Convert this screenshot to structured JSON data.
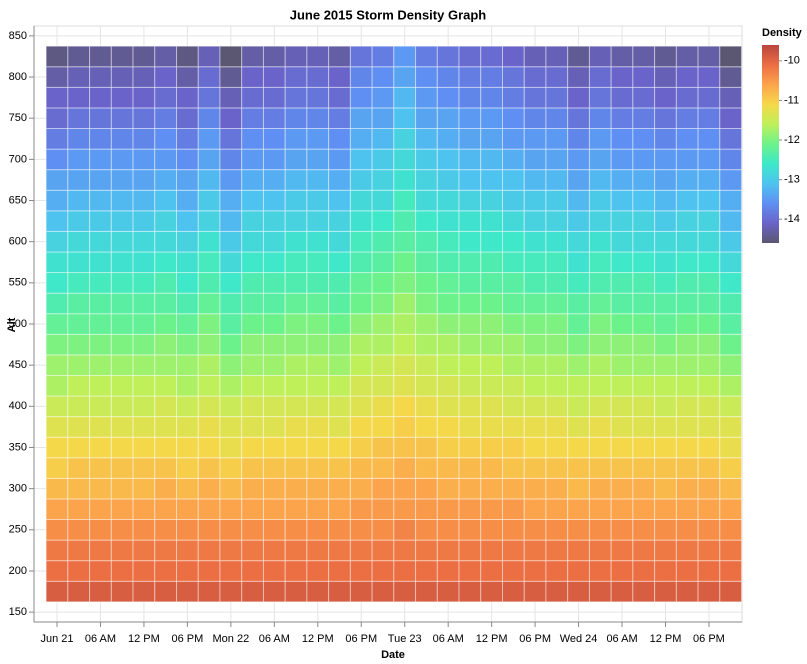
{
  "chart_data": {
    "type": "heatmap",
    "title": "June 2015 Storm Density Graph",
    "x_label": "Date",
    "y_label": "Alt",
    "color_title": "Density",
    "x": [
      "Jun 21 00:00",
      "Jun 21 03:00",
      "Jun 21 06:00",
      "Jun 21 09:00",
      "Jun 21 12:00",
      "Jun 21 15:00",
      "Jun 21 18:00",
      "Jun 21 21:00",
      "Jun 22 00:00",
      "Jun 22 03:00",
      "Jun 22 06:00",
      "Jun 22 09:00",
      "Jun 22 12:00",
      "Jun 22 15:00",
      "Jun 22 18:00",
      "Jun 22 21:00",
      "Jun 23 00:00",
      "Jun 23 03:00",
      "Jun 23 06:00",
      "Jun 23 09:00",
      "Jun 23 12:00",
      "Jun 23 15:00",
      "Jun 23 18:00",
      "Jun 23 21:00",
      "Jun 24 00:00",
      "Jun 24 03:00",
      "Jun 24 06:00",
      "Jun 24 09:00",
      "Jun 24 12:00",
      "Jun 24 15:00",
      "Jun 24 18:00",
      "Jun 24 21:00"
    ],
    "y": [
      175,
      200,
      225,
      250,
      275,
      300,
      325,
      350,
      375,
      400,
      425,
      450,
      475,
      500,
      525,
      550,
      575,
      600,
      625,
      650,
      675,
      700,
      725,
      750,
      775,
      800,
      825
    ],
    "z": [
      [
        -9.9,
        -9.9,
        -9.9,
        -9.9,
        -9.9,
        -9.9,
        -9.9,
        -9.9,
        -9.9,
        -9.9,
        -9.9,
        -9.9,
        -9.9,
        -9.9,
        -9.9,
        -9.9,
        -9.9,
        -9.9,
        -9.9,
        -9.9,
        -9.9,
        -9.9,
        -9.9,
        -9.9,
        -9.9,
        -9.9,
        -9.9,
        -9.9,
        -9.9,
        -9.9,
        -9.9,
        -9.9
      ],
      [
        -10.1,
        -10.1,
        -10.1,
        -10.1,
        -10.1,
        -10.1,
        -10.1,
        -10.1,
        -10.1,
        -10.1,
        -10.1,
        -10.1,
        -10.1,
        -10.1,
        -10.1,
        -10.1,
        -10.1,
        -10.1,
        -10.1,
        -10.1,
        -10.1,
        -10.1,
        -10.1,
        -10.1,
        -10.1,
        -10.1,
        -10.1,
        -10.1,
        -10.1,
        -10.1,
        -10.1,
        -10.1
      ],
      [
        -10.2,
        -10.2,
        -10.2,
        -10.2,
        -10.2,
        -10.2,
        -10.2,
        -10.2,
        -10.2,
        -10.2,
        -10.2,
        -10.2,
        -10.2,
        -10.2,
        -10.2,
        -10.2,
        -10.2,
        -10.2,
        -10.2,
        -10.2,
        -10.2,
        -10.2,
        -10.2,
        -10.2,
        -10.2,
        -10.2,
        -10.2,
        -10.2,
        -10.2,
        -10.2,
        -10.2,
        -10.2
      ],
      [
        -10.4,
        -10.4,
        -10.4,
        -10.4,
        -10.4,
        -10.4,
        -10.4,
        -10.4,
        -10.4,
        -10.4,
        -10.4,
        -10.4,
        -10.4,
        -10.4,
        -10.4,
        -10.4,
        -10.3,
        -10.4,
        -10.4,
        -10.4,
        -10.4,
        -10.4,
        -10.4,
        -10.4,
        -10.4,
        -10.4,
        -10.4,
        -10.4,
        -10.4,
        -10.4,
        -10.4,
        -10.4
      ],
      [
        -10.6,
        -10.6,
        -10.6,
        -10.6,
        -10.6,
        -10.6,
        -10.6,
        -10.6,
        -10.6,
        -10.6,
        -10.6,
        -10.6,
        -10.6,
        -10.6,
        -10.5,
        -10.5,
        -10.5,
        -10.5,
        -10.5,
        -10.5,
        -10.5,
        -10.5,
        -10.6,
        -10.6,
        -10.6,
        -10.6,
        -10.6,
        -10.6,
        -10.6,
        -10.6,
        -10.6,
        -10.6
      ],
      [
        -10.8,
        -10.8,
        -10.8,
        -10.8,
        -10.8,
        -10.7,
        -10.8,
        -10.7,
        -10.8,
        -10.7,
        -10.7,
        -10.7,
        -10.7,
        -10.7,
        -10.7,
        -10.6,
        -10.6,
        -10.6,
        -10.7,
        -10.7,
        -10.7,
        -10.7,
        -10.7,
        -10.7,
        -10.8,
        -10.7,
        -10.7,
        -10.7,
        -10.8,
        -10.7,
        -10.7,
        -10.8
      ],
      [
        -11.0,
        -10.9,
        -10.9,
        -10.9,
        -10.9,
        -10.9,
        -11.0,
        -10.9,
        -11.0,
        -10.9,
        -10.9,
        -10.9,
        -10.9,
        -10.9,
        -10.8,
        -10.8,
        -10.7,
        -10.8,
        -10.8,
        -10.8,
        -10.8,
        -10.9,
        -10.9,
        -10.9,
        -10.9,
        -10.9,
        -10.9,
        -10.9,
        -10.9,
        -10.9,
        -10.9,
        -11.0
      ],
      [
        -11.1,
        -11.1,
        -11.1,
        -11.1,
        -11.1,
        -11.1,
        -11.1,
        -11.1,
        -11.2,
        -11.1,
        -11.1,
        -11.1,
        -11.1,
        -11.1,
        -11.0,
        -10.9,
        -10.9,
        -10.9,
        -11.0,
        -11.0,
        -11.0,
        -11.0,
        -11.1,
        -11.1,
        -11.1,
        -11.1,
        -11.1,
        -11.1,
        -11.1,
        -11.1,
        -11.1,
        -11.2
      ],
      [
        -11.3,
        -11.3,
        -11.3,
        -11.3,
        -11.3,
        -11.3,
        -11.3,
        -11.2,
        -11.3,
        -11.3,
        -11.3,
        -11.2,
        -11.2,
        -11.3,
        -11.1,
        -11.1,
        -11.0,
        -11.1,
        -11.1,
        -11.2,
        -11.2,
        -11.2,
        -11.2,
        -11.2,
        -11.3,
        -11.2,
        -11.3,
        -11.3,
        -11.3,
        -11.3,
        -11.3,
        -11.3
      ],
      [
        -11.5,
        -11.5,
        -11.5,
        -11.5,
        -11.5,
        -11.4,
        -11.5,
        -11.4,
        -11.5,
        -11.4,
        -11.4,
        -11.4,
        -11.4,
        -11.4,
        -11.3,
        -11.2,
        -11.1,
        -11.2,
        -11.3,
        -11.3,
        -11.3,
        -11.4,
        -11.4,
        -11.4,
        -11.5,
        -11.4,
        -11.4,
        -11.4,
        -11.5,
        -11.4,
        -11.4,
        -11.5
      ],
      [
        -11.7,
        -11.6,
        -11.6,
        -11.6,
        -11.6,
        -11.6,
        -11.7,
        -11.6,
        -11.7,
        -11.6,
        -11.6,
        -11.6,
        -11.6,
        -11.6,
        -11.4,
        -11.4,
        -11.3,
        -11.4,
        -11.4,
        -11.5,
        -11.5,
        -11.5,
        -11.6,
        -11.6,
        -11.6,
        -11.6,
        -11.6,
        -11.6,
        -11.6,
        -11.6,
        -11.6,
        -11.7
      ],
      [
        -11.8,
        -11.8,
        -11.8,
        -11.8,
        -11.8,
        -11.8,
        -11.8,
        -11.7,
        -11.9,
        -11.8,
        -11.8,
        -11.7,
        -11.7,
        -11.8,
        -11.6,
        -11.5,
        -11.4,
        -11.5,
        -11.6,
        -11.6,
        -11.6,
        -11.7,
        -11.7,
        -11.7,
        -11.8,
        -11.7,
        -11.8,
        -11.8,
        -11.8,
        -11.8,
        -11.8,
        -11.9
      ],
      [
        -12.0,
        -12.0,
        -12.0,
        -12.0,
        -12.0,
        -11.9,
        -12.0,
        -11.9,
        -12.1,
        -11.9,
        -11.9,
        -11.9,
        -11.9,
        -11.9,
        -11.7,
        -11.7,
        -11.6,
        -11.7,
        -11.7,
        -11.8,
        -11.8,
        -11.8,
        -11.9,
        -11.9,
        -12.0,
        -11.9,
        -11.9,
        -11.9,
        -12.0,
        -11.9,
        -11.9,
        -12.1
      ],
      [
        -12.2,
        -12.2,
        -12.2,
        -12.2,
        -12.2,
        -12.1,
        -12.2,
        -12.0,
        -12.3,
        -12.1,
        -12.1,
        -12.0,
        -12.0,
        -12.1,
        -11.9,
        -11.8,
        -11.7,
        -11.8,
        -11.9,
        -11.9,
        -11.9,
        -12.0,
        -12.0,
        -12.0,
        -12.2,
        -12.0,
        -12.1,
        -12.1,
        -12.2,
        -12.1,
        -12.1,
        -12.3
      ],
      [
        -12.4,
        -12.3,
        -12.3,
        -12.3,
        -12.3,
        -12.3,
        -12.4,
        -12.2,
        -12.4,
        -12.3,
        -12.3,
        -12.2,
        -12.2,
        -12.3,
        -12.1,
        -12.0,
        -11.8,
        -12.0,
        -12.1,
        -12.1,
        -12.1,
        -12.2,
        -12.2,
        -12.2,
        -12.3,
        -12.2,
        -12.3,
        -12.3,
        -12.3,
        -12.3,
        -12.3,
        -12.4
      ],
      [
        -12.6,
        -12.5,
        -12.5,
        -12.5,
        -12.5,
        -12.4,
        -12.6,
        -12.4,
        -12.6,
        -12.4,
        -12.4,
        -12.4,
        -12.4,
        -12.4,
        -12.2,
        -12.1,
        -12.0,
        -12.1,
        -12.2,
        -12.3,
        -12.3,
        -12.3,
        -12.4,
        -12.4,
        -12.5,
        -12.4,
        -12.4,
        -12.4,
        -12.5,
        -12.4,
        -12.4,
        -12.6
      ],
      [
        -12.7,
        -12.7,
        -12.7,
        -12.7,
        -12.7,
        -12.6,
        -12.7,
        -12.5,
        -12.8,
        -12.6,
        -12.6,
        -12.5,
        -12.5,
        -12.6,
        -12.4,
        -12.3,
        -12.1,
        -12.3,
        -12.4,
        -12.4,
        -12.4,
        -12.5,
        -12.5,
        -12.5,
        -12.7,
        -12.5,
        -12.6,
        -12.6,
        -12.7,
        -12.6,
        -12.6,
        -12.8
      ],
      [
        -12.9,
        -12.8,
        -12.8,
        -12.8,
        -12.8,
        -12.8,
        -12.9,
        -12.7,
        -13.0,
        -12.8,
        -12.8,
        -12.7,
        -12.7,
        -12.8,
        -12.5,
        -12.4,
        -12.3,
        -12.4,
        -12.5,
        -12.6,
        -12.6,
        -12.6,
        -12.7,
        -12.7,
        -12.8,
        -12.7,
        -12.8,
        -12.8,
        -12.8,
        -12.8,
        -12.8,
        -13.0
      ],
      [
        -13.1,
        -13.0,
        -13.0,
        -13.0,
        -13.0,
        -12.9,
        -13.1,
        -12.9,
        -13.2,
        -12.9,
        -12.9,
        -12.9,
        -12.9,
        -12.9,
        -12.7,
        -12.6,
        -12.4,
        -12.6,
        -12.7,
        -12.7,
        -12.7,
        -12.8,
        -12.9,
        -12.9,
        -13.0,
        -12.9,
        -12.9,
        -12.9,
        -13.0,
        -12.9,
        -12.9,
        -13.2
      ],
      [
        -13.3,
        -13.2,
        -13.2,
        -13.2,
        -13.2,
        -13.1,
        -13.3,
        -13.0,
        -13.3,
        -13.1,
        -13.1,
        -13.0,
        -13.0,
        -13.1,
        -12.8,
        -12.8,
        -12.5,
        -12.8,
        -12.8,
        -12.9,
        -12.9,
        -13.0,
        -13.0,
        -13.0,
        -13.2,
        -13.0,
        -13.1,
        -13.1,
        -13.2,
        -13.1,
        -13.1,
        -13.3
      ],
      [
        -13.4,
        -13.4,
        -13.4,
        -13.4,
        -13.4,
        -13.3,
        -13.4,
        -13.2,
        -13.5,
        -13.3,
        -13.3,
        -13.2,
        -13.2,
        -13.3,
        -13.0,
        -12.9,
        -12.7,
        -12.9,
        -13.0,
        -13.1,
        -13.1,
        -13.1,
        -13.2,
        -13.2,
        -13.4,
        -13.2,
        -13.3,
        -13.3,
        -13.4,
        -13.3,
        -13.3,
        -13.5
      ],
      [
        -13.6,
        -13.5,
        -13.5,
        -13.5,
        -13.5,
        -13.5,
        -13.6,
        -13.4,
        -13.7,
        -13.5,
        -13.5,
        -13.4,
        -13.4,
        -13.5,
        -13.1,
        -13.0,
        -12.8,
        -13.0,
        -13.1,
        -13.2,
        -13.2,
        -13.3,
        -13.4,
        -13.4,
        -13.5,
        -13.4,
        -13.5,
        -13.5,
        -13.5,
        -13.5,
        -13.5,
        -13.7
      ],
      [
        -13.8,
        -13.7,
        -13.7,
        -13.7,
        -13.7,
        -13.6,
        -13.8,
        -13.5,
        -13.9,
        -13.6,
        -13.6,
        -13.5,
        -13.5,
        -13.6,
        -13.3,
        -13.2,
        -12.9,
        -13.2,
        -13.3,
        -13.4,
        -13.4,
        -13.5,
        -13.5,
        -13.5,
        -13.7,
        -13.5,
        -13.6,
        -13.6,
        -13.7,
        -13.6,
        -13.6,
        -13.9
      ],
      [
        -14.0,
        -13.9,
        -13.9,
        -13.9,
        -13.9,
        -13.8,
        -14.0,
        -13.7,
        -14.1,
        -13.8,
        -13.8,
        -13.7,
        -13.7,
        -13.8,
        -13.4,
        -13.4,
        -13.1,
        -13.4,
        -13.4,
        -13.5,
        -13.5,
        -13.6,
        -13.7,
        -13.7,
        -13.9,
        -13.7,
        -13.8,
        -13.8,
        -13.9,
        -13.8,
        -13.8,
        -14.1
      ],
      [
        -14.1,
        -14.1,
        -14.1,
        -14.1,
        -14.1,
        -14.0,
        -14.1,
        -13.9,
        -14.2,
        -14.0,
        -14.0,
        -13.9,
        -13.9,
        -14.0,
        -13.6,
        -13.5,
        -13.2,
        -13.5,
        -13.6,
        -13.7,
        -13.7,
        -13.8,
        -13.9,
        -13.9,
        -14.1,
        -13.9,
        -14.0,
        -14.0,
        -14.1,
        -14.0,
        -14.0,
        -14.2
      ],
      [
        -14.3,
        -14.2,
        -14.2,
        -14.2,
        -14.2,
        -14.1,
        -14.3,
        -14.0,
        -14.4,
        -14.1,
        -14.1,
        -14.0,
        -14.0,
        -14.1,
        -13.7,
        -13.6,
        -13.4,
        -13.6,
        -13.7,
        -13.8,
        -13.8,
        -13.9,
        -14.0,
        -14.0,
        -14.2,
        -14.0,
        -14.1,
        -14.1,
        -14.2,
        -14.1,
        -14.1,
        -14.4
      ],
      [
        -14.5,
        -14.4,
        -14.4,
        -14.4,
        -14.4,
        -14.3,
        -14.5,
        -14.2,
        -14.6,
        -14.3,
        -14.3,
        -14.2,
        -14.2,
        -14.3,
        -13.9,
        -13.8,
        -13.5,
        -13.8,
        -13.9,
        -14.0,
        -14.0,
        -14.1,
        -14.2,
        -14.2,
        -14.4,
        -14.2,
        -14.3,
        -14.3,
        -14.4,
        -14.3,
        -14.3,
        -14.6
      ]
    ],
    "ylim": [
      138,
      862
    ],
    "yticks": [
      150,
      200,
      250,
      300,
      350,
      400,
      450,
      500,
      550,
      600,
      650,
      700,
      750,
      800,
      850
    ],
    "xticks": [
      {
        "value": "Jun 21 00:00",
        "label": "Jun 21"
      },
      {
        "value": "Jun 21 06:00",
        "label": "06 AM"
      },
      {
        "value": "Jun 21 12:00",
        "label": "12 PM"
      },
      {
        "value": "Jun 21 18:00",
        "label": "06 PM"
      },
      {
        "value": "Jun 22 00:00",
        "label": "Mon 22"
      },
      {
        "value": "Jun 22 06:00",
        "label": "06 AM"
      },
      {
        "value": "Jun 22 12:00",
        "label": "12 PM"
      },
      {
        "value": "Jun 22 18:00",
        "label": "06 PM"
      },
      {
        "value": "Jun 23 00:00",
        "label": "Tue 23"
      },
      {
        "value": "Jun 23 06:00",
        "label": "06 AM"
      },
      {
        "value": "Jun 23 12:00",
        "label": "12 PM"
      },
      {
        "value": "Jun 23 18:00",
        "label": "06 PM"
      },
      {
        "value": "Jun 24 00:00",
        "label": "Wed 24"
      },
      {
        "value": "Jun 24 06:00",
        "label": "06 AM"
      },
      {
        "value": "Jun 24 12:00",
        "label": "12 PM"
      },
      {
        "value": "Jun 24 18:00",
        "label": "06 PM"
      }
    ],
    "clim": [
      -14.6,
      -9.6
    ],
    "cticks": [
      -10,
      -11,
      -12,
      -13,
      -14
    ],
    "colors": [
      "#5b5671",
      "#6a63c9",
      "#5f8ff2",
      "#4ec3f0",
      "#3ee8c8",
      "#6cf28a",
      "#bff05a",
      "#f5d84a",
      "#fca44c",
      "#ec6e43",
      "#b8453f"
    ],
    "grid": true
  }
}
